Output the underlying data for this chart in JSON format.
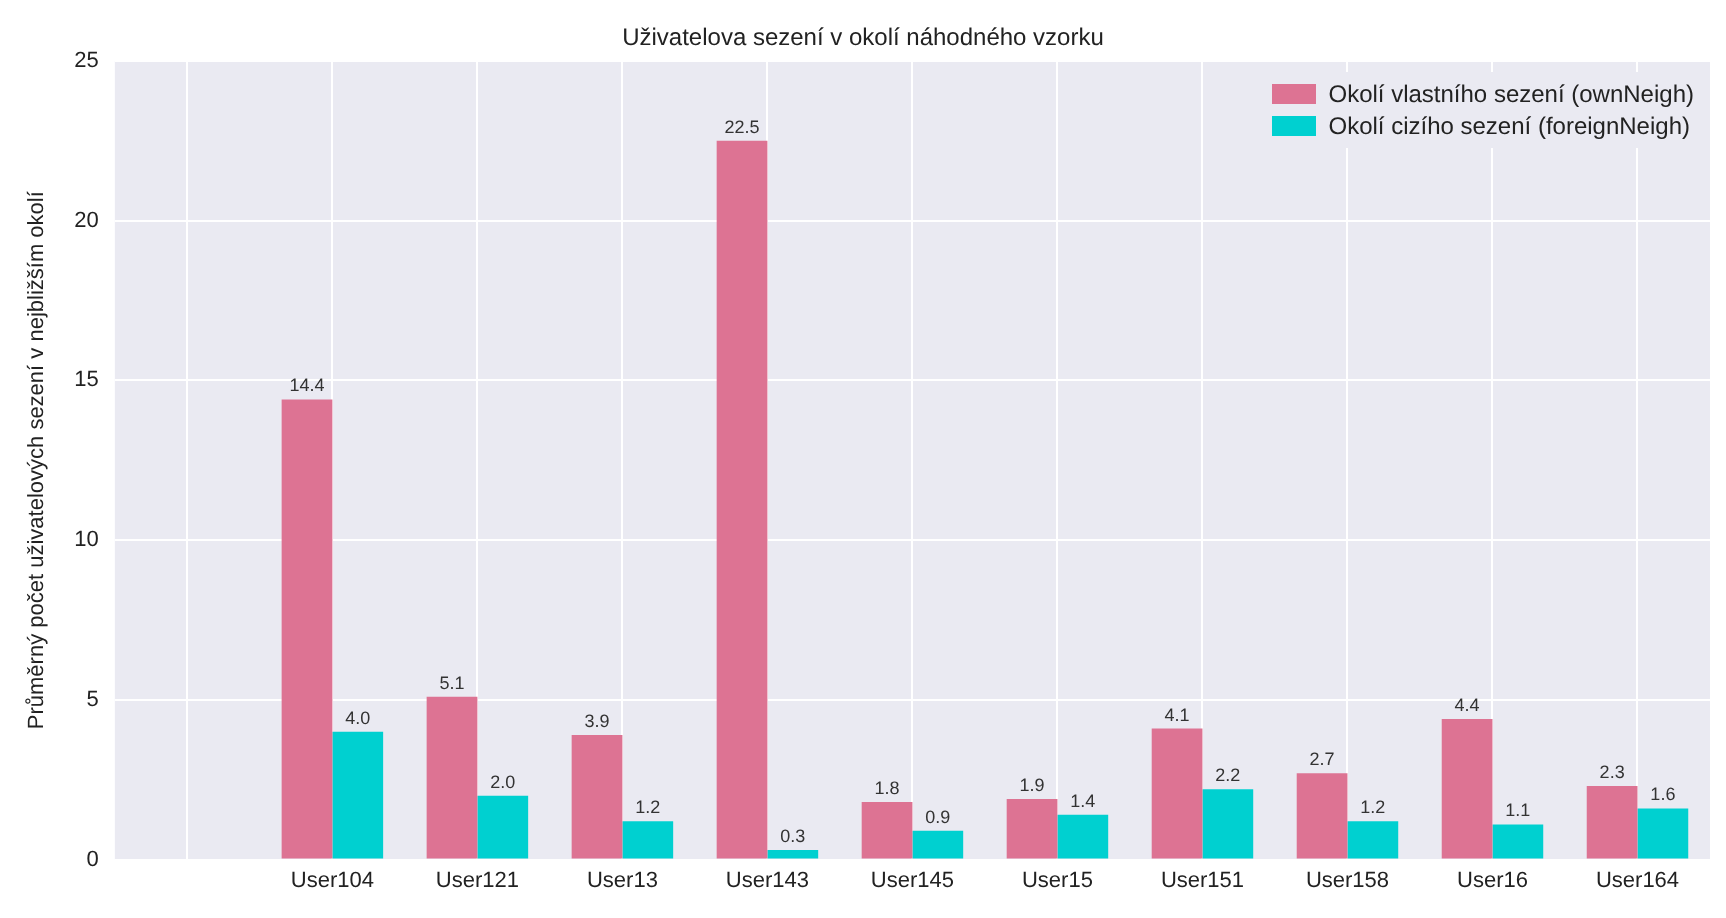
{
  "chart_data": {
    "type": "bar",
    "title": "Uživatelova sezení v okolí náhodného vzorku",
    "ylabel": "Průměrný počet uživatelových sezení v nejbližším okolí",
    "categories": [
      null,
      "User104",
      "User121",
      "User13",
      "User143",
      "User145",
      "User15",
      "User151",
      "User158",
      "User16",
      "User164"
    ],
    "series": [
      {
        "name": "Okolí vlastního sezení (ownNeigh)",
        "color": "#dd7393",
        "values": [
          null,
          14.4,
          5.1,
          3.9,
          22.5,
          1.8,
          1.9,
          4.1,
          2.7,
          4.4,
          2.3
        ],
        "value_labels": [
          null,
          "14.4",
          "5.1",
          "3.9",
          "22.5",
          "1.8",
          "1.9",
          "4.1",
          "2.7",
          "4.4",
          "2.3"
        ]
      },
      {
        "name": "Okolí cizího sezení (foreignNeigh)",
        "color": "#00d0d0",
        "values": [
          null,
          4.0,
          2.0,
          1.2,
          0.3,
          0.9,
          1.4,
          2.2,
          1.2,
          1.1,
          1.6
        ],
        "value_labels": [
          null,
          "4.0",
          "2.0",
          "1.2",
          "0.3",
          "0.9",
          "1.4",
          "2.2",
          "1.2",
          "1.1",
          "1.6"
        ]
      }
    ],
    "ylim": [
      0,
      25
    ],
    "yticks": [
      0,
      5,
      10,
      15,
      20,
      25
    ],
    "grid": true,
    "legend": "top right"
  }
}
